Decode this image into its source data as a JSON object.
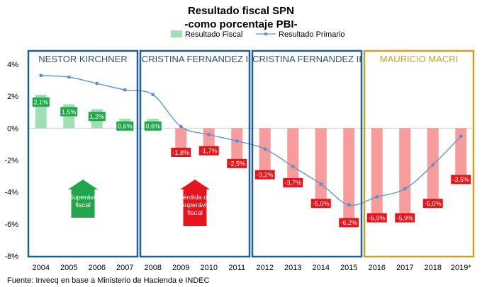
{
  "chart_data": {
    "type": "bar",
    "title": "Resultado fiscal SPN",
    "subtitle": "-como porcentaje PBI-",
    "categories": [
      "2004",
      "2005",
      "2006",
      "2007",
      "2008",
      "2009",
      "2010",
      "2011",
      "2012",
      "2013",
      "2014",
      "2015",
      "2016",
      "2017",
      "2018",
      "2019*"
    ],
    "ylim": [
      -8,
      4
    ],
    "yticks": [
      4,
      2,
      0,
      -2,
      -4,
      -6,
      -8
    ],
    "ytick_labels": [
      "4%",
      "2%",
      "0%",
      "-2%",
      "-4%",
      "-6%",
      "-8%"
    ],
    "grid": false,
    "legend": "top",
    "series": [
      {
        "name": "Resultado Fiscal",
        "type": "bar",
        "values": [
          2.1,
          1.5,
          1.2,
          0.6,
          0.6,
          -1.8,
          -1.7,
          -2.5,
          -3.2,
          -3.7,
          -5.0,
          -6.2,
          -5.9,
          -5.9,
          -5.0,
          -3.5
        ],
        "labels": [
          "2,1%",
          "1,5%",
          "1,2%",
          "0,6%",
          "0,6%",
          "-1,8%",
          "-1,7%",
          "-2,5%",
          "-3,2%",
          "-3,7%",
          "-5,0%",
          "-6,2%",
          "-5,9%",
          "-5,9%",
          "-5,0%",
          "-3,5%"
        ],
        "positive_color": "#9ee0b4",
        "negative_color": "#f79b9b",
        "positive_label_color": "#21a64a",
        "negative_label_color": "#e8141c"
      },
      {
        "name": "Resultado Primario",
        "type": "line",
        "values": [
          3.3,
          3.2,
          2.8,
          2.4,
          2.1,
          0.1,
          -0.4,
          -0.8,
          -1.3,
          -2.4,
          -3.5,
          -4.8,
          -4.3,
          -3.8,
          -2.3,
          -0.5
        ],
        "color": "#5b8fd0"
      }
    ],
    "periods": [
      {
        "label": "NESTOR KIRCHNER",
        "start": 0,
        "end": 3,
        "color": "#1f5f96",
        "text_color": "#2f4f7f"
      },
      {
        "label": "CRISTINA FERNANDEZ I",
        "start": 4,
        "end": 7,
        "color": "#1f5f96",
        "text_color": "#2f4f7f"
      },
      {
        "label": "CRISTINA FERNANDEZ II",
        "start": 8,
        "end": 11,
        "color": "#1f5f96",
        "text_color": "#2f4f7f"
      },
      {
        "label": "MAURICIO MACRI",
        "start": 12,
        "end": 15,
        "color": "#c9a227",
        "text_color": "#c9a227"
      }
    ],
    "annotations": [
      {
        "text": "Superávit fiscal",
        "lines": [
          "Superávit",
          "fiscal"
        ],
        "color": "#21a64a",
        "category_index": 1.5
      },
      {
        "text": "Pérdida de superávit fiscal",
        "lines": [
          "Pérdida de",
          "superávit",
          "fiscal"
        ],
        "color": "#e8141c",
        "category_index": 5.5
      }
    ],
    "source": "Fuente: Invecq en base a Ministerio de Hacienda e INDEC"
  }
}
